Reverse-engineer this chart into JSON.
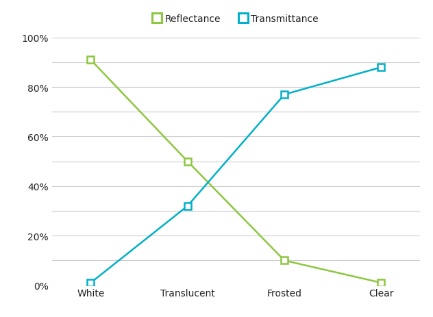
{
  "categories": [
    "White",
    "Translucent",
    "Frosted",
    "Clear"
  ],
  "reflectance": [
    0.91,
    0.5,
    0.1,
    0.01
  ],
  "transmittance": [
    0.01,
    0.32,
    0.77,
    0.88
  ],
  "reflectance_color": "#8DC63F",
  "transmittance_color": "#00B0C8",
  "background_color": "#FFFFFF",
  "grid_color": "#CCCCCC",
  "ylim": [
    0,
    1.0
  ],
  "yticks": [
    0.0,
    0.1,
    0.2,
    0.3,
    0.4,
    0.5,
    0.6,
    0.7,
    0.8,
    0.9,
    1.0
  ],
  "ytick_display": [
    0.0,
    0.2,
    0.4,
    0.6,
    0.8,
    1.0
  ],
  "ytick_labels_show": [
    "0%",
    "20%",
    "40%",
    "60%",
    "80%",
    "100%"
  ],
  "legend_reflectance": "Reflectance",
  "legend_transmittance": "Transmittance",
  "marker": "s",
  "marker_size": 7,
  "linewidth": 1.8,
  "label_fontsize": 10,
  "legend_fontsize": 10,
  "text_color": "#222222"
}
